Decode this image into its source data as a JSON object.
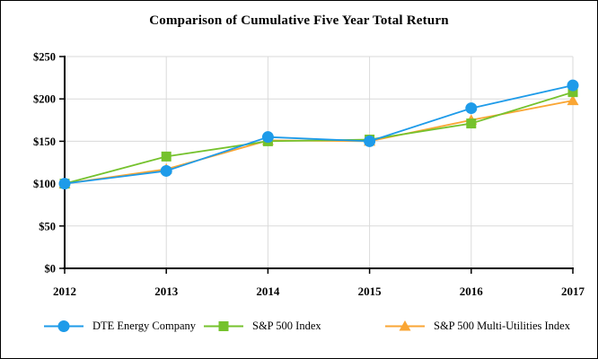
{
  "window": {
    "background": "#ffffff",
    "border_color": "#000000"
  },
  "chart_data": {
    "type": "line",
    "title": "Comparison of Cumulative Five Year Total Return",
    "x": [
      2012,
      2013,
      2014,
      2015,
      2016,
      2017
    ],
    "series": [
      {
        "name": "DTE Energy Company",
        "marker": "circle",
        "color": "#1e9be9",
        "values": [
          100,
          115,
          155,
          150,
          189,
          216
        ]
      },
      {
        "name": "S&P 500 Index",
        "marker": "square",
        "color": "#75c22d",
        "values": [
          100,
          132,
          150,
          152,
          171,
          208
        ]
      },
      {
        "name": "S&P 500 Multi-Utilities Index",
        "marker": "triangle",
        "color": "#faa634",
        "values": [
          100,
          117,
          151,
          150,
          175,
          198
        ]
      }
    ],
    "xlabel": "",
    "ylabel": "",
    "ylim": [
      0,
      250
    ],
    "ytick_step": 50,
    "ytick_prefix": "$",
    "grid": true,
    "gridline_color": "#dadada",
    "axis_color": "#000000",
    "legend_position": "bottom"
  },
  "legend": {
    "item_lefts": [
      47,
      225,
      427
    ]
  }
}
